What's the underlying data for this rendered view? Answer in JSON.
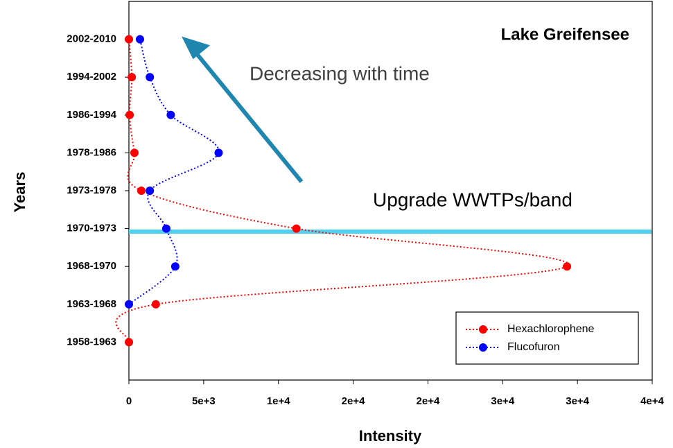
{
  "chart_data": {
    "type": "line",
    "title": "Lake Greifensee",
    "x_label": "Intensity",
    "y_label": "Years",
    "annotations": [
      "Decreasing with time",
      "Upgrade WWTPs/band"
    ],
    "categories": [
      "1958-1963",
      "1963-1968",
      "1968-1970",
      "1970-1973",
      "1973-1978",
      "1978-1986",
      "1986-1994",
      "1994-2002",
      "2002-2010"
    ],
    "series": [
      {
        "name": "Hexachlorophene",
        "color": "#ff0000",
        "values": [
          0,
          1800,
          29300,
          11200,
          830,
          370,
          50,
          190,
          0
        ]
      },
      {
        "name": "Flucofuron",
        "color": "#0000ff",
        "values": [
          null,
          0,
          3100,
          2500,
          1400,
          6000,
          2800,
          1400,
          740
        ]
      }
    ],
    "xlim": [
      0,
      35000
    ],
    "xticks": [
      0,
      {
        "value": 5000,
        "label": "5e+3"
      },
      {
        "value": 10000,
        "label": "1e+4"
      },
      {
        "value": 15000,
        "label": "2e+4"
      },
      {
        "value": 20000,
        "label": "2e+4"
      },
      {
        "value": 25000,
        "label": "3e+4"
      },
      {
        "value": 30000,
        "label": "3e+4"
      },
      {
        "value": 35000,
        "label": "4e+4"
      }
    ],
    "legend": "lower right"
  }
}
